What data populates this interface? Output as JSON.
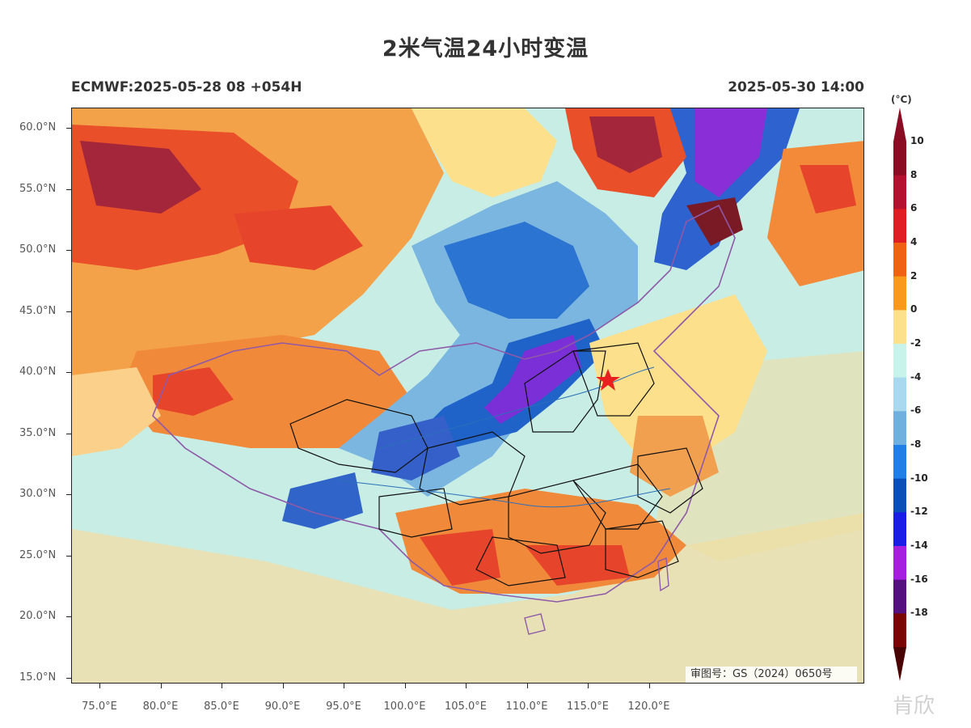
{
  "header": {
    "title": "2米气温24小时变温",
    "model_run": "ECMWF:2025-05-28 08 +054H",
    "valid_time": "2025-05-30 14:00"
  },
  "axes": {
    "lat_labels": [
      "60.0°N",
      "55.0°N",
      "50.0°N",
      "45.0°N",
      "40.0°N",
      "35.0°N",
      "30.0°N",
      "25.0°N",
      "20.0°N",
      "15.0°N"
    ],
    "lon_labels": [
      "75.0°E",
      "80.0°E",
      "85.0°E",
      "90.0°E",
      "95.0°E",
      "100.0°E",
      "105.0°E",
      "110.0°E",
      "115.0°E",
      "120.0°E"
    ]
  },
  "colorbar": {
    "unit": "(°C)",
    "labels": [
      "10",
      "8",
      "6",
      "4",
      "2",
      "0",
      "-2",
      "-4",
      "-6",
      "-8",
      "-10",
      "-12",
      "-14",
      "-16",
      "-18"
    ],
    "colors": [
      "#8b0d23",
      "#b5102f",
      "#e11c23",
      "#f06114",
      "#fa9a1a",
      "#fde08c",
      "#c8f3ea",
      "#a8d9ef",
      "#6fb0de",
      "#1f7fe6",
      "#0a4fb8",
      "#1a1de8",
      "#a51fe0",
      "#54107e",
      "#7a0505"
    ]
  },
  "map": {
    "marker": "beijing-star",
    "approval_number": "审图号：GS（2024）0650号"
  },
  "watermark": "肯欣"
}
